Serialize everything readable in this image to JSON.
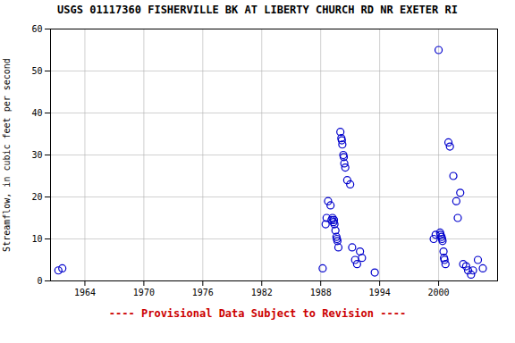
{
  "chart_data": {
    "type": "scatter",
    "title": "USGS 01117360 FISHERVILLE BK AT LIBERTY CHURCH RD NR EXETER RI",
    "ylabel": "Streamflow, in cubic feet per second",
    "xlim": [
      1960.5,
      2006
    ],
    "ylim": [
      0,
      60
    ],
    "xticks": [
      1964,
      1970,
      1976,
      1982,
      1988,
      1994,
      2000
    ],
    "yticks": [
      0,
      10,
      20,
      30,
      40,
      50,
      60
    ],
    "grid": true,
    "color": "#0000CC",
    "marker": "circle",
    "annotations": [
      {
        "text": "---- Provisional Data Subject to Revision ----",
        "color": "#cc0000"
      }
    ],
    "x": [
      1961.3,
      1961.7,
      1988.2,
      1988.5,
      1988.6,
      1988.75,
      1989.0,
      1989.1,
      1989.2,
      1989.3,
      1989.35,
      1989.4,
      1989.5,
      1989.6,
      1989.65,
      1989.7,
      1989.8,
      1990.0,
      1990.1,
      1990.15,
      1990.2,
      1990.3,
      1990.35,
      1990.4,
      1990.5,
      1990.7,
      1991.0,
      1991.2,
      1991.5,
      1991.7,
      1992.0,
      1992.2,
      1993.5,
      1999.5,
      1999.7,
      2000.0,
      2000.15,
      2000.2,
      2000.3,
      2000.35,
      2000.4,
      2000.5,
      2000.55,
      2000.6,
      2000.7,
      2001.0,
      2001.15,
      2001.5,
      2001.8,
      2001.95,
      2002.2,
      2002.5,
      2002.8,
      2003.0,
      2003.3,
      2003.5,
      2004.0,
      2004.5
    ],
    "values": [
      2.5,
      3.0,
      3.0,
      13.5,
      15.0,
      19.0,
      18.0,
      14.5,
      15.0,
      14.0,
      14.5,
      13.5,
      12.0,
      10.5,
      10.0,
      9.5,
      8.0,
      35.5,
      34.0,
      33.5,
      32.5,
      30.0,
      29.5,
      28.0,
      27.0,
      24.0,
      23.0,
      8.0,
      5.0,
      4.0,
      7.0,
      5.5,
      2.0,
      10.0,
      11.0,
      55.0,
      11.5,
      11.0,
      10.5,
      10.0,
      9.5,
      7.0,
      5.5,
      5.0,
      4.0,
      33.0,
      32.0,
      25.0,
      19.0,
      15.0,
      21.0,
      4.0,
      3.5,
      2.5,
      1.5,
      2.5,
      5.0,
      3.0
    ]
  }
}
